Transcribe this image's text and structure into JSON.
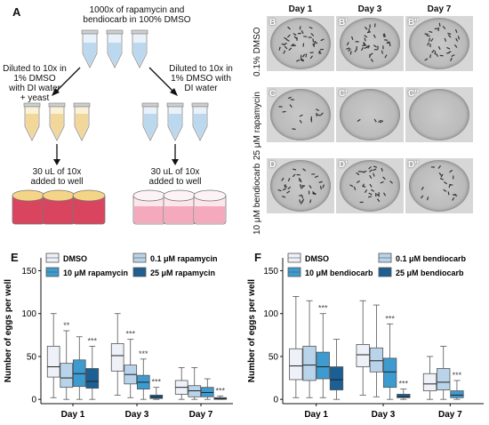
{
  "panelA": {
    "letter": "A",
    "stock_line1": "1000x of rapamycin and",
    "stock_line2": "bendiocarb in 100% DMSO",
    "left_line1": "Diluted to 10x in",
    "left_line2": "1% DMSO",
    "left_line3": "with DI water",
    "left_line4": "+ yeast",
    "right_line1": "Diluted to 10x in",
    "right_line2": "1% DMSO with",
    "right_line3": "DI water",
    "add_line1": "30 uL of 10x",
    "add_line2": "added to well",
    "add_line1_r": "30 uL of 10x",
    "add_line2_r": "added to well",
    "colors": {
      "tube_blue": "#cfe3f3",
      "tube_yellow": "#f3dca4",
      "dish_red": "#d9455f",
      "dish_yellow": "#f4d487",
      "dish_pink": "#f5a9bd"
    }
  },
  "panelB": {
    "day_headers": [
      "Day 1",
      "Day 3",
      "Day 7"
    ],
    "row_labels": [
      "0.1% DMSO",
      "25 μM rapamycin",
      "10 μM bendiocarb"
    ],
    "well_labels": [
      [
        "B",
        "B'",
        "B''"
      ],
      [
        "C",
        "C'",
        "C''"
      ],
      [
        "D",
        "D'",
        "D''"
      ]
    ]
  },
  "panelE": {
    "letter": "E",
    "legend": [
      "DMSO",
      "0.1 μM rapamycin",
      "10 μM rapamycin",
      "25 μM rapamycin"
    ]
  },
  "panelF": {
    "letter": "F",
    "legend": [
      "DMSO",
      "0.1 μM bendiocarb",
      "10 μM bendiocarb",
      "25 μM bendiocarb"
    ]
  },
  "chart_data": [
    {
      "type": "box",
      "ylabel": "Number of eggs per well",
      "categories": [
        "Day 1",
        "Day 3",
        "Day 7"
      ],
      "yticks": [
        0,
        50,
        100,
        150
      ],
      "ylim": [
        -5,
        165
      ],
      "colors": [
        "#eef1f8",
        "#b9d4ea",
        "#3d9bd0",
        "#1b5f95"
      ],
      "series": [
        {
          "name": "DMSO",
          "boxes": [
            {
              "q1": 26,
              "med": 38,
              "q3": 62,
              "wlo": 2,
              "whi": 100,
              "sig": ""
            },
            {
              "q1": 33,
              "med": 51,
              "q3": 65,
              "wlo": 5,
              "whi": 100,
              "sig": ""
            },
            {
              "q1": 6,
              "med": 14,
              "q3": 22,
              "wlo": 0,
              "whi": 37,
              "sig": ""
            }
          ]
        },
        {
          "name": "0.1 μM rapamycin",
          "boxes": [
            {
              "q1": 14,
              "med": 25,
              "q3": 42,
              "wlo": 0,
              "whi": 80,
              "sig": "**"
            },
            {
              "q1": 18,
              "med": 29,
              "q3": 40,
              "wlo": 2,
              "whi": 70,
              "sig": "***"
            },
            {
              "q1": 3,
              "med": 10,
              "q3": 16,
              "wlo": 0,
              "whi": 37,
              "sig": ""
            }
          ]
        },
        {
          "name": "10 μM rapamycin",
          "boxes": [
            {
              "q1": 15,
              "med": 30,
              "q3": 46,
              "wlo": 0,
              "whi": 73,
              "sig": ""
            },
            {
              "q1": 12,
              "med": 20,
              "q3": 28,
              "wlo": 0,
              "whi": 47,
              "sig": "***"
            },
            {
              "q1": 3,
              "med": 8,
              "q3": 14,
              "wlo": 0,
              "whi": 24,
              "sig": ""
            }
          ]
        },
        {
          "name": "25 μM rapamycin",
          "boxes": [
            {
              "q1": 13,
              "med": 21,
              "q3": 36,
              "wlo": 0,
              "whi": 62,
              "sig": "***"
            },
            {
              "q1": 1,
              "med": 3,
              "q3": 5,
              "wlo": 0,
              "whi": 14,
              "sig": "***"
            },
            {
              "q1": 0,
              "med": 1,
              "q3": 2,
              "wlo": 0,
              "whi": 4,
              "sig": "***"
            }
          ]
        }
      ]
    },
    {
      "type": "box",
      "ylabel": "Number of eggs per well",
      "categories": [
        "Day 1",
        "Day 3",
        "Day 7"
      ],
      "yticks": [
        0,
        50,
        100,
        150
      ],
      "ylim": [
        -5,
        165
      ],
      "colors": [
        "#eef1f8",
        "#b9d4ea",
        "#3d9bd0",
        "#1b5f95"
      ],
      "series": [
        {
          "name": "DMSO",
          "boxes": [
            {
              "q1": 23,
              "med": 39,
              "q3": 59,
              "wlo": 2,
              "whi": 120,
              "sig": ""
            },
            {
              "q1": 38,
              "med": 52,
              "q3": 64,
              "wlo": 5,
              "whi": 115,
              "sig": ""
            },
            {
              "q1": 10,
              "med": 18,
              "q3": 30,
              "wlo": 0,
              "whi": 50,
              "sig": ""
            }
          ]
        },
        {
          "name": "0.1 μM bendiocarb",
          "boxes": [
            {
              "q1": 22,
              "med": 40,
              "q3": 62,
              "wlo": 2,
              "whi": 115,
              "sig": ""
            },
            {
              "q1": 32,
              "med": 45,
              "q3": 60,
              "wlo": 3,
              "whi": 110,
              "sig": ""
            },
            {
              "q1": 11,
              "med": 20,
              "q3": 36,
              "wlo": 0,
              "whi": 62,
              "sig": ""
            }
          ]
        },
        {
          "name": "10 μM bendiocarb",
          "boxes": [
            {
              "q1": 24,
              "med": 38,
              "q3": 55,
              "wlo": 2,
              "whi": 100,
              "sig": "***"
            },
            {
              "q1": 14,
              "med": 32,
              "q3": 48,
              "wlo": 0,
              "whi": 88,
              "sig": "***"
            },
            {
              "q1": 2,
              "med": 5,
              "q3": 10,
              "wlo": 0,
              "whi": 22,
              "sig": "***"
            }
          ]
        },
        {
          "name": "25 μM bendiocarb",
          "boxes": [
            {
              "q1": 11,
              "med": 23,
              "q3": 38,
              "wlo": 0,
              "whi": 70,
              "sig": ""
            },
            {
              "q1": 2,
              "med": 3,
              "q3": 6,
              "wlo": 0,
              "whi": 12,
              "sig": "***"
            },
            {
              "q1": null,
              "med": null,
              "q3": null,
              "wlo": null,
              "whi": null,
              "sig": ""
            }
          ]
        }
      ]
    }
  ]
}
